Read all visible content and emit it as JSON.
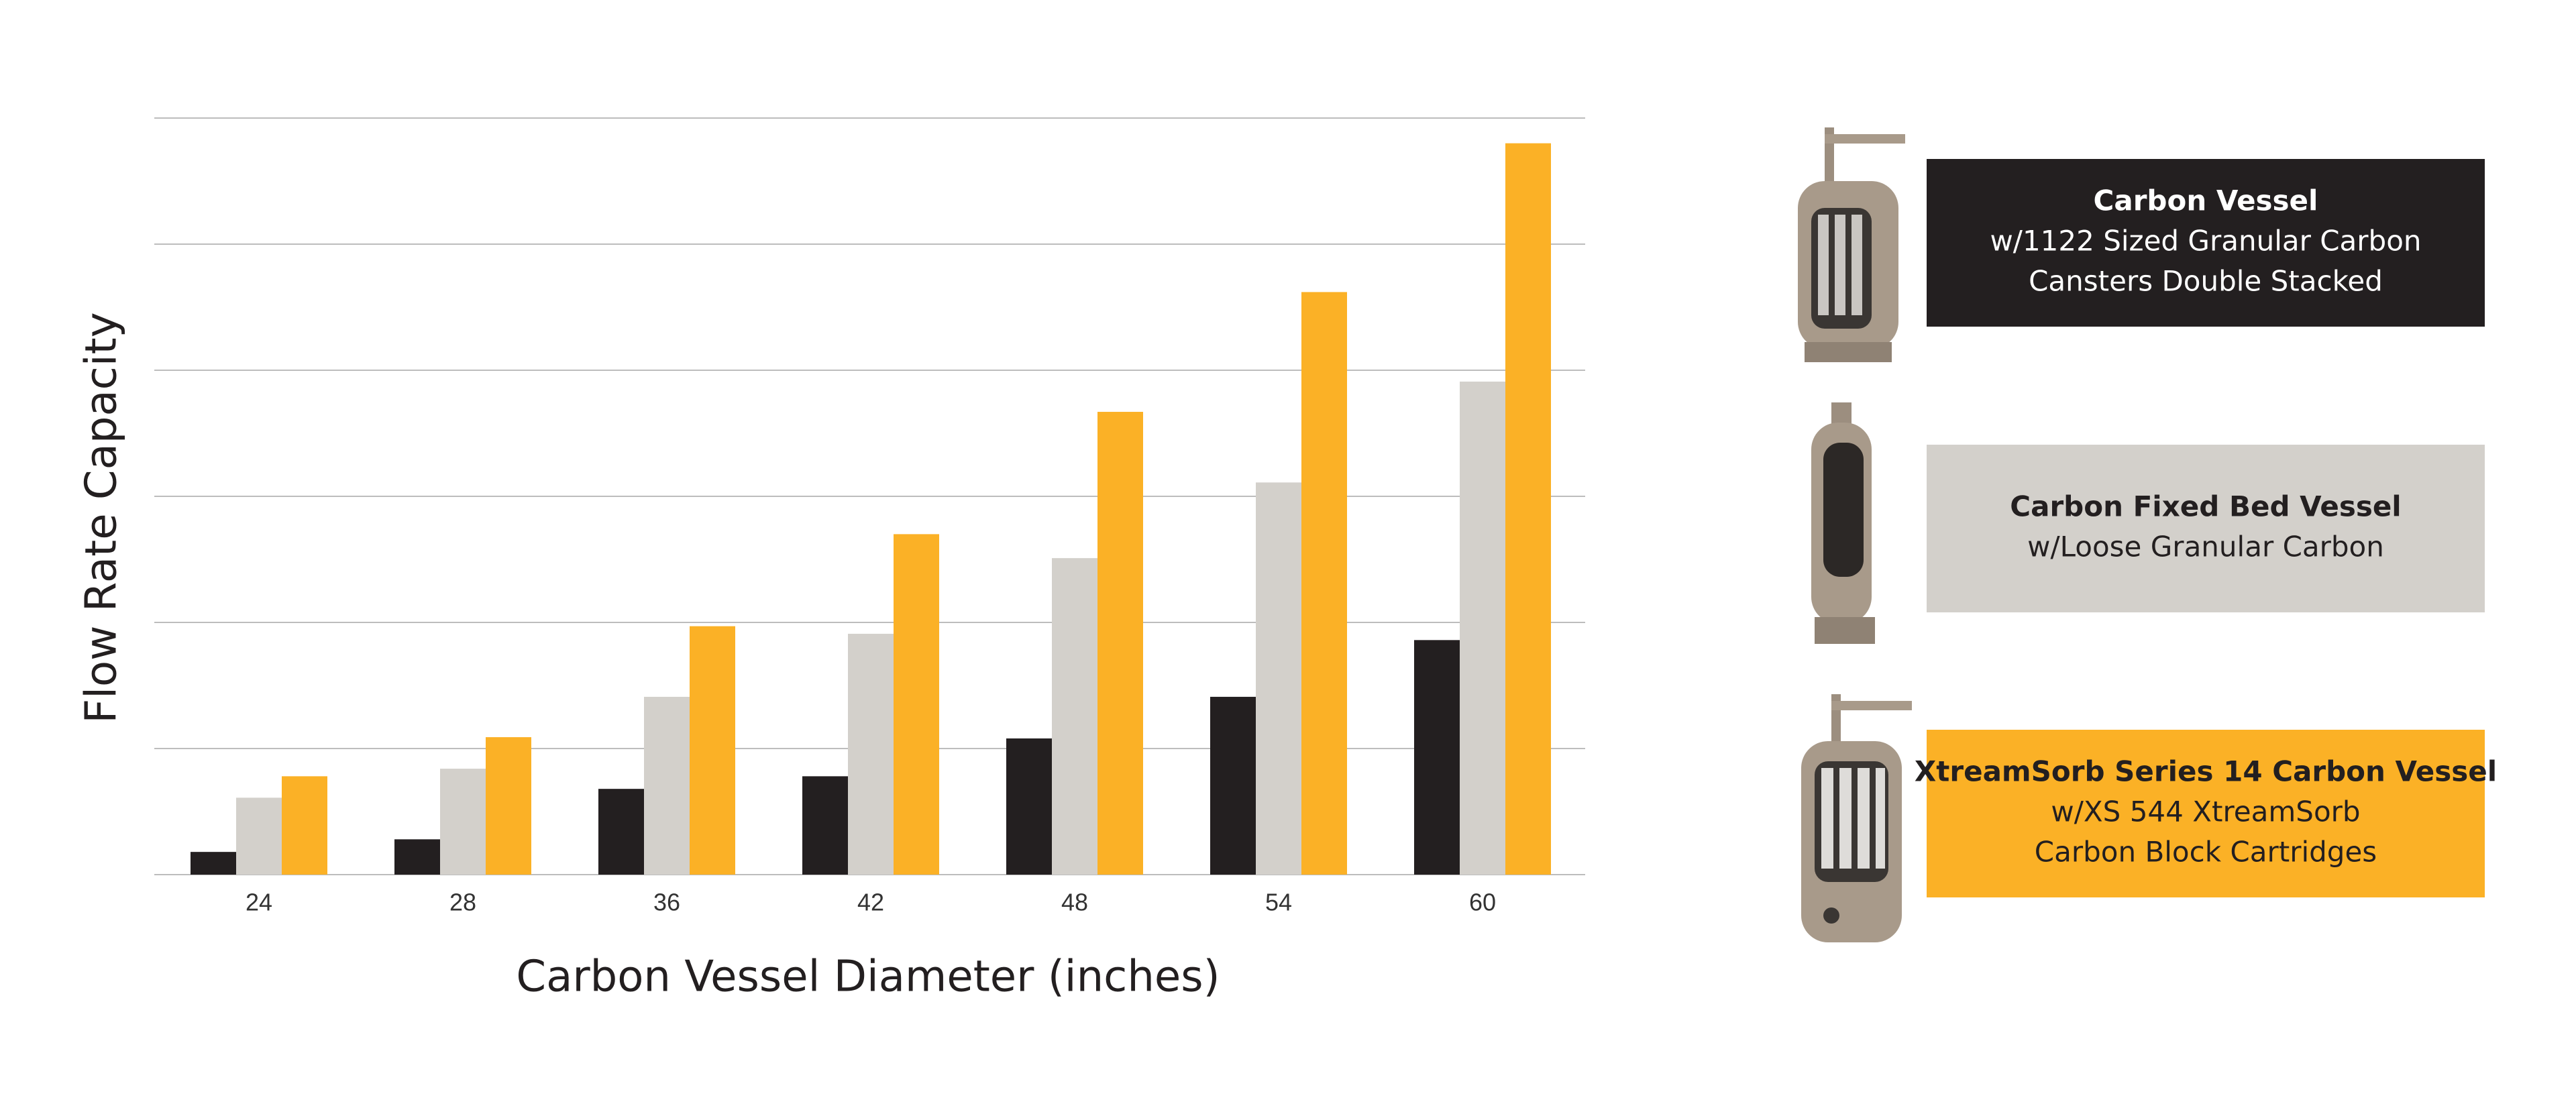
{
  "chart_data": {
    "type": "bar",
    "x_label": "Carbon Vessel Diameter (inches)",
    "y_label": "Flow Rate Capacity",
    "categories": [
      "24",
      "28",
      "36",
      "42",
      "48",
      "54",
      "60"
    ],
    "ylim": [
      0,
      6
    ],
    "yticks": [
      0,
      1,
      2,
      3,
      4,
      5,
      6
    ],
    "grid": true,
    "series": [
      {
        "name": "Carbon Vessel",
        "description": [
          "w/1122 Sized Granular Carbon",
          "Cansters Double Stacked"
        ],
        "color": "#231f20",
        "values": [
          0.18,
          0.28,
          0.68,
          0.78,
          1.08,
          1.41,
          1.86
        ]
      },
      {
        "name": "Carbon Fixed Bed Vessel",
        "description": [
          "w/Loose Granular Carbon"
        ],
        "color": "#d3d0cb",
        "values": [
          0.61,
          0.84,
          1.41,
          1.91,
          2.51,
          3.11,
          3.91
        ]
      },
      {
        "name": "XtreamSorb Series 14 Carbon Vessel",
        "description": [
          "w/XS 544 XtreamSorb",
          "Carbon Block Cartridges"
        ],
        "color": "#fbb126",
        "values": [
          0.78,
          1.09,
          1.97,
          2.7,
          3.67,
          4.62,
          5.8
        ]
      }
    ]
  }
}
